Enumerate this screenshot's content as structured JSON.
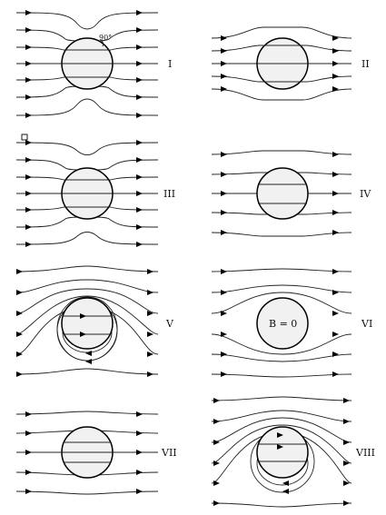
{
  "panels": [
    {
      "label": "I",
      "annotation": "90°"
    },
    {
      "label": "II"
    },
    {
      "label": "III"
    },
    {
      "label": "IV"
    },
    {
      "label": "V"
    },
    {
      "label": "VI",
      "inner_text": "B = 0"
    },
    {
      "label": "VII"
    },
    {
      "label": "VIII"
    }
  ]
}
